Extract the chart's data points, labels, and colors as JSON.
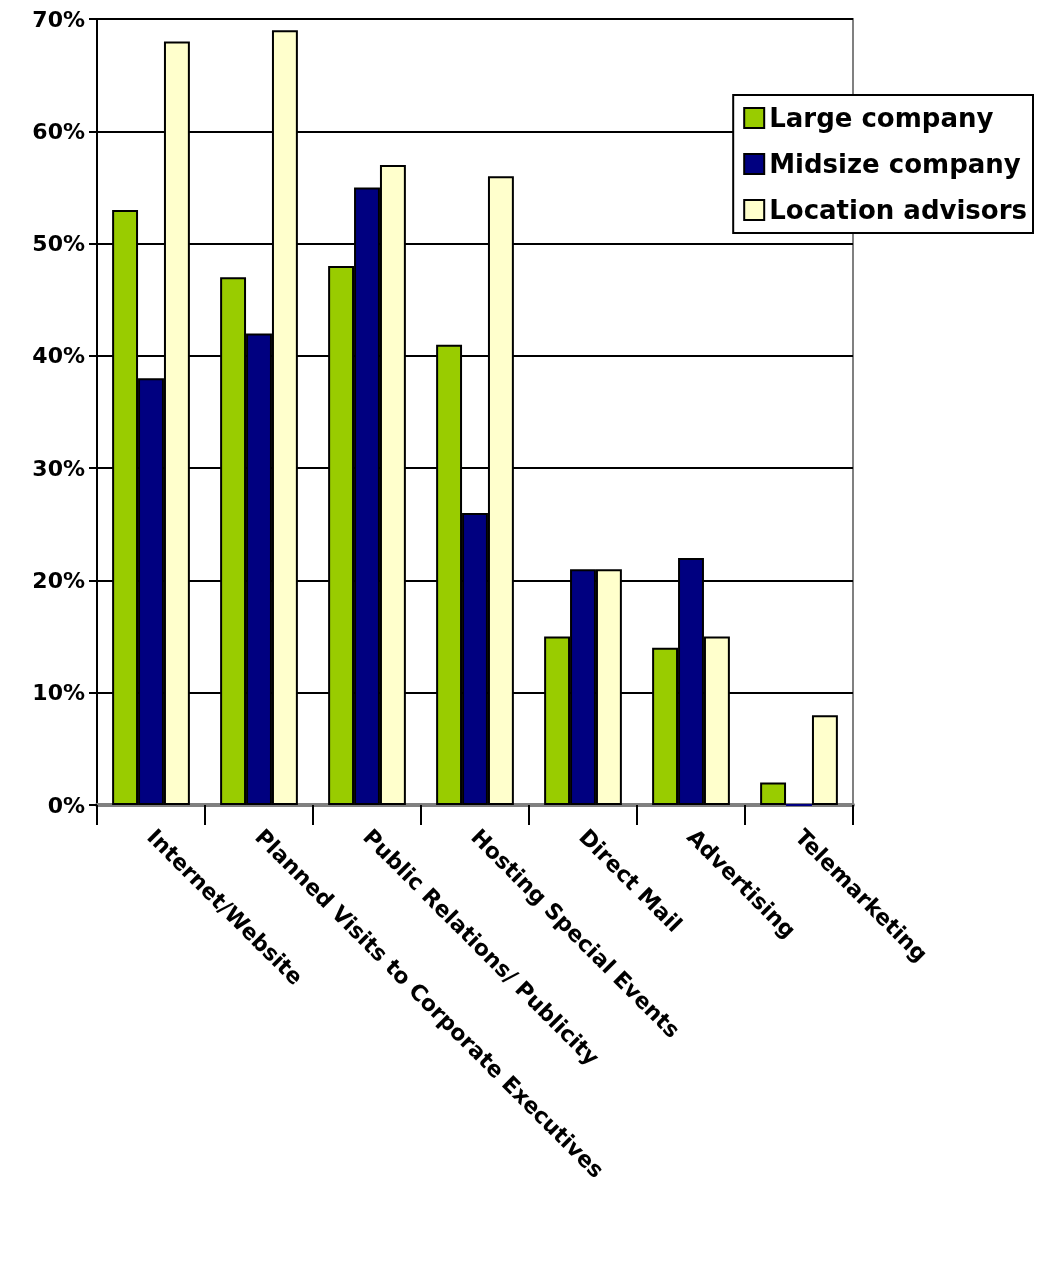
{
  "chart_data": {
    "type": "bar",
    "categories": [
      "Internet/Website",
      "Planned Visits to Corporate Executives",
      "Public Relations/ Publicity",
      "Hosting Special Events",
      "Direct Mail",
      "Advertising",
      "Telemarketing"
    ],
    "series": [
      {
        "name": "Large company",
        "color": "#99cc00",
        "values": [
          53,
          47,
          48,
          41,
          15,
          14,
          2
        ]
      },
      {
        "name": "Midsize company",
        "color": "#000080",
        "values": [
          38,
          42,
          55,
          26,
          21,
          22,
          0
        ]
      },
      {
        "name": "Location advisors",
        "color": "#ffffcc",
        "values": [
          68,
          69,
          57,
          56,
          21,
          15,
          8
        ]
      }
    ],
    "ylim": [
      0,
      70
    ],
    "yticks": [
      {
        "value": 0,
        "label": "0%"
      },
      {
        "value": 10,
        "label": "10%"
      },
      {
        "value": 20,
        "label": "20%"
      },
      {
        "value": 30,
        "label": "30%"
      },
      {
        "value": 40,
        "label": "40%"
      },
      {
        "value": 50,
        "label": "50%"
      },
      {
        "value": 60,
        "label": "60%"
      },
      {
        "value": 70,
        "label": "70%"
      }
    ],
    "grid": "y",
    "legend": "top right"
  }
}
